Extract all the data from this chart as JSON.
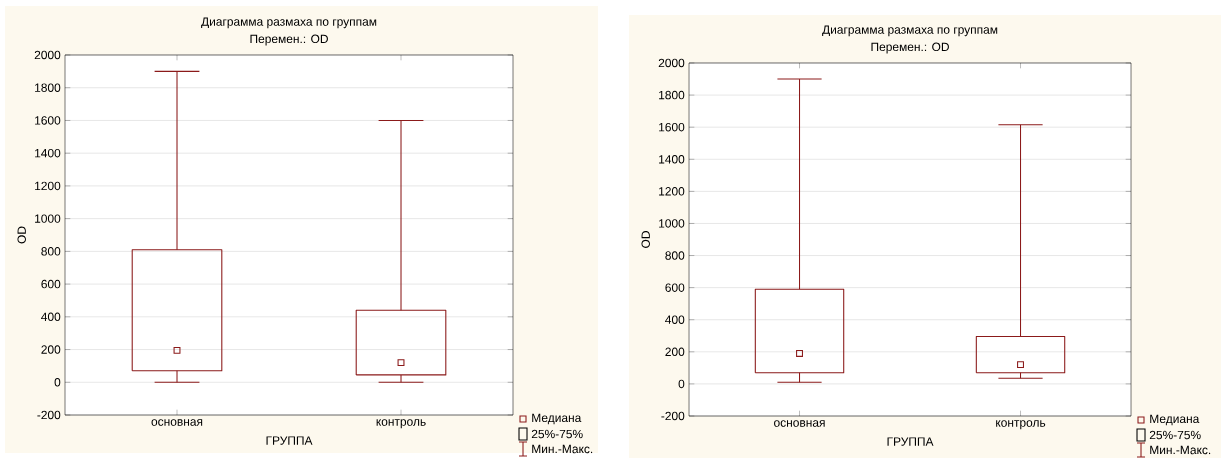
{
  "chart_data": [
    {
      "type": "box",
      "title": "Диаграмма размаха по группам",
      "subtitle": "Перемен.: OD",
      "xlabel": "ГРУППА",
      "ylabel": "OD",
      "categories": [
        "основная",
        "контроль"
      ],
      "series": [
        {
          "color": "#8b1a1a",
          "boxes": [
            {
              "low": 0,
              "q1": 70,
              "median": 195,
              "q3": 810,
              "high": 1900
            },
            {
              "low": 0,
              "q1": 45,
              "median": 120,
              "q3": 440,
              "high": 1600
            }
          ]
        }
      ],
      "ylim": [
        -200,
        2000
      ],
      "yticks": [
        -200,
        0,
        200,
        400,
        600,
        800,
        1000,
        1200,
        1400,
        1600,
        1800,
        2000
      ],
      "grid": "y",
      "annotations": [
        "Медиана",
        "25%-75%",
        "Мин.-Макс."
      ]
    },
    {
      "type": "box",
      "title": "Диаграмма размаха по группам",
      "subtitle": "Перемен.: OD",
      "xlabel": "ГРУППА",
      "ylabel": "OD",
      "categories": [
        "основная",
        "контроль"
      ],
      "series": [
        {
          "color": "#8b1a1a",
          "boxes": [
            {
              "low": 10,
              "q1": 70,
              "median": 190,
              "q3": 590,
              "high": 1900
            },
            {
              "low": 35,
              "q1": 70,
              "median": 120,
              "q3": 295,
              "high": 1615
            }
          ]
        }
      ],
      "ylim": [
        -200,
        2000
      ],
      "yticks": [
        -200,
        0,
        200,
        400,
        600,
        800,
        1000,
        1200,
        1400,
        1600,
        1800,
        2000
      ],
      "grid": "y",
      "annotations": [
        "Медиана",
        "25%-75%",
        "Мин.-Макс."
      ]
    }
  ]
}
